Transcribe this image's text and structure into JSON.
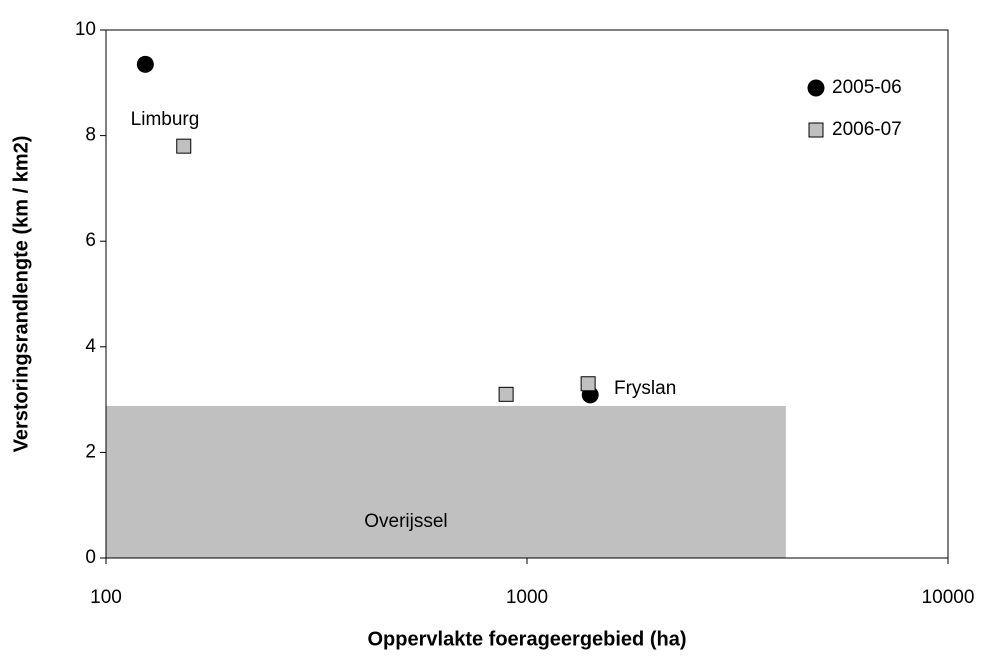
{
  "chart_data": {
    "type": "scatter",
    "xlabel": "Oppervlakte foerageergebied (ha)",
    "ylabel": "Verstoringsrandlengte (km / km2)",
    "xscale": "log",
    "xlim": [
      100,
      10000
    ],
    "xticks": [
      100,
      1000,
      10000
    ],
    "ylim": [
      0,
      10
    ],
    "yticks": [
      0,
      2,
      4,
      6,
      8,
      10
    ],
    "grid": false,
    "legend": "upper right",
    "series": [
      {
        "name": "2005-06",
        "color": "#000000",
        "marker": "circle",
        "x": [
          124,
          1413
        ],
        "values": [
          9.35,
          3.09
        ]
      },
      {
        "name": "2006-07",
        "color": "#c0c0c0",
        "marker": "square",
        "x": [
          153,
          892,
          1397
        ],
        "values": [
          7.8,
          3.1,
          3.3
        ]
      }
    ],
    "region": {
      "label": "Overijssel",
      "color": "#c0c0c0",
      "x": [
        100,
        4120
      ],
      "y": [
        0,
        2.88
      ]
    },
    "annotations": [
      "Limburg",
      "Fryslan"
    ]
  }
}
